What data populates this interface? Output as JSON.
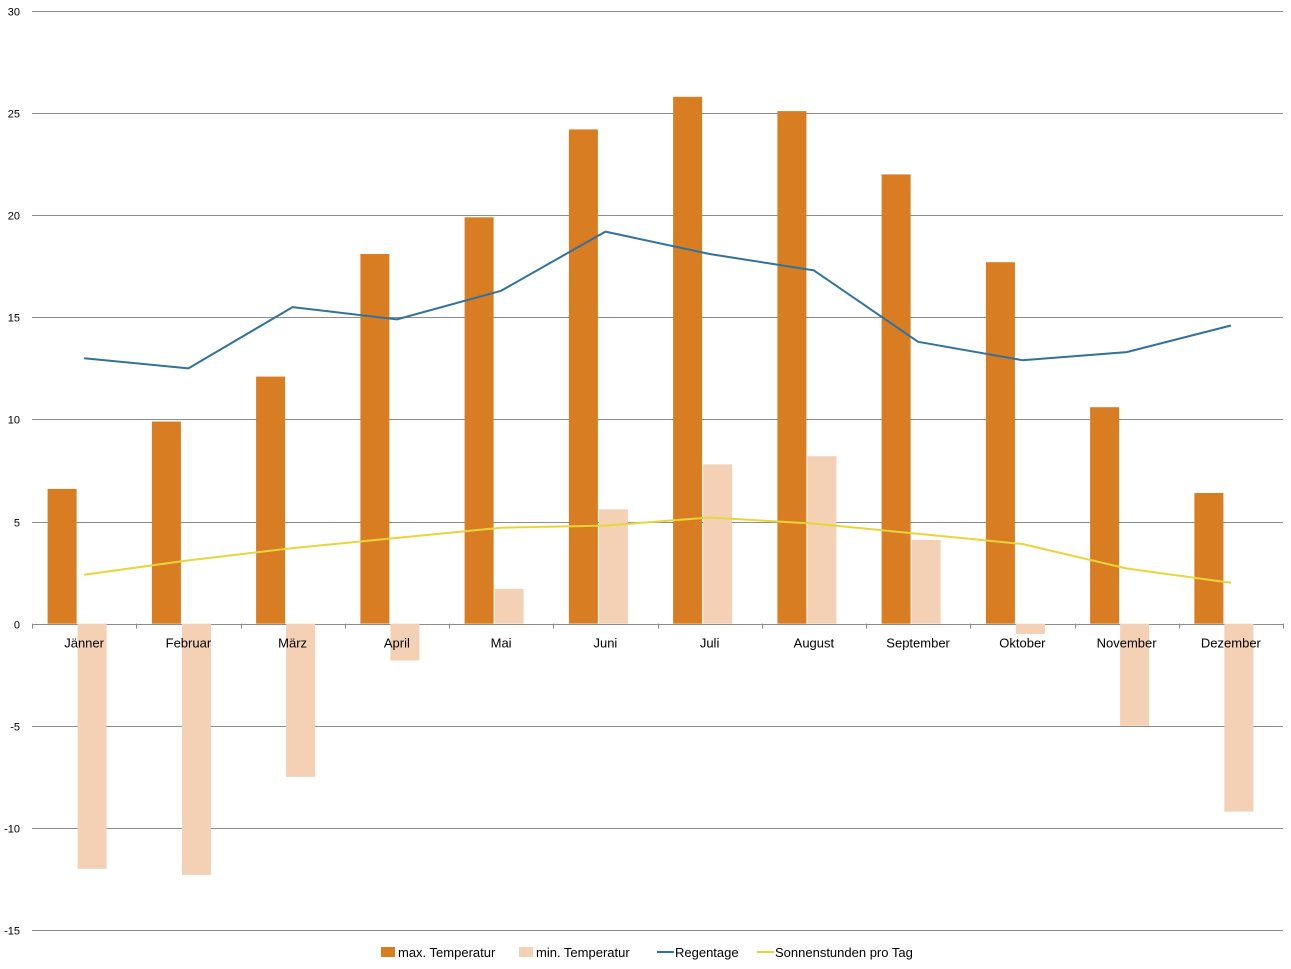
{
  "chart_data": {
    "type": "bar",
    "categories": [
      "Jänner",
      "Februar",
      "März",
      "April",
      "Mai",
      "Juni",
      "Juli",
      "August",
      "September",
      "Oktober",
      "November",
      "Dezember"
    ],
    "series": [
      {
        "name": "max. Temperatur",
        "kind": "bar",
        "color": "#D97D22",
        "values": [
          6.6,
          9.9,
          12.1,
          18.1,
          19.9,
          24.2,
          25.8,
          25.1,
          22.0,
          17.7,
          10.6,
          6.4
        ]
      },
      {
        "name": "min. Temperatur",
        "kind": "bar",
        "color": "#F4D0B5",
        "values": [
          -12.0,
          -12.3,
          -7.5,
          -1.8,
          1.7,
          5.6,
          7.8,
          8.2,
          4.1,
          -0.5,
          -5.0,
          -9.2
        ]
      },
      {
        "name": "Regentage",
        "kind": "line",
        "color": "#31729B",
        "values": [
          13.0,
          12.5,
          15.5,
          14.9,
          16.3,
          19.2,
          18.1,
          17.3,
          13.8,
          12.9,
          13.3,
          14.6
        ]
      },
      {
        "name": "Sonnenstunden pro Tag",
        "kind": "line",
        "color": "#E8D53B",
        "values": [
          2.4,
          3.1,
          3.7,
          4.2,
          4.7,
          4.8,
          5.2,
          4.9,
          4.4,
          3.9,
          2.7,
          2.0
        ]
      }
    ],
    "yticks": [
      -15,
      -10,
      -5,
      0,
      5,
      10,
      15,
      20,
      25,
      30
    ],
    "ylim": [
      -15,
      30
    ],
    "grid": true,
    "legend_position": "bottom"
  }
}
